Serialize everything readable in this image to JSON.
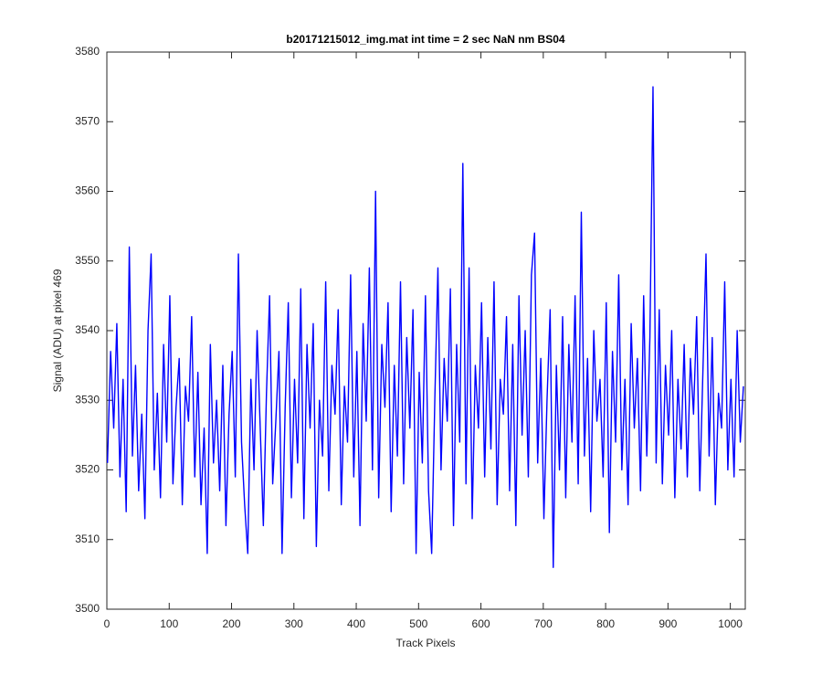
{
  "chart_data": {
    "type": "line",
    "title": "b20171215012_img.mat int time = 2 sec  NaN nm BS04",
    "x_label": "Track Pixels",
    "y_label": "Signal (ADU) at pixel 469",
    "xlim": [
      0,
      1024
    ],
    "xticks": [
      0,
      100,
      200,
      300,
      400,
      500,
      600,
      700,
      800,
      900,
      1000
    ],
    "ylim": [
      3500,
      3580
    ],
    "yticks": [
      3500,
      3510,
      3520,
      3530,
      3540,
      3550,
      3560,
      3570,
      3580
    ],
    "grid": false,
    "x": [
      1,
      6,
      11,
      16,
      21,
      26,
      31,
      36,
      41,
      46,
      51,
      56,
      61,
      66,
      71,
      76,
      81,
      86,
      91,
      96,
      101,
      106,
      111,
      116,
      121,
      126,
      131,
      136,
      141,
      146,
      151,
      156,
      161,
      166,
      171,
      176,
      181,
      186,
      191,
      196,
      201,
      206,
      211,
      216,
      221,
      226,
      231,
      236,
      241,
      246,
      251,
      256,
      261,
      266,
      271,
      276,
      281,
      286,
      291,
      296,
      301,
      306,
      311,
      316,
      321,
      326,
      331,
      336,
      341,
      346,
      351,
      356,
      361,
      366,
      371,
      376,
      381,
      386,
      391,
      396,
      401,
      406,
      411,
      416,
      421,
      426,
      431,
      436,
      441,
      446,
      451,
      456,
      461,
      466,
      471,
      476,
      481,
      486,
      491,
      496,
      501,
      506,
      511,
      516,
      521,
      526,
      531,
      536,
      541,
      546,
      551,
      556,
      561,
      566,
      571,
      576,
      581,
      586,
      591,
      596,
      601,
      606,
      611,
      616,
      621,
      626,
      631,
      636,
      641,
      646,
      651,
      656,
      661,
      666,
      671,
      676,
      681,
      686,
      691,
      696,
      701,
      706,
      711,
      716,
      721,
      726,
      731,
      736,
      741,
      746,
      751,
      756,
      761,
      766,
      771,
      776,
      781,
      786,
      791,
      796,
      801,
      806,
      811,
      816,
      821,
      826,
      831,
      836,
      841,
      846,
      851,
      856,
      861,
      866,
      871,
      876,
      881,
      886,
      891,
      896,
      901,
      906,
      911,
      916,
      921,
      926,
      931,
      936,
      941,
      946,
      951,
      956,
      961,
      966,
      971,
      976,
      981,
      986,
      991,
      996,
      1001,
      1006,
      1011,
      1016,
      1021
    ],
    "series": [
      {
        "name": "signal",
        "color": "#0000ff",
        "values": [
          3521,
          3537,
          3526,
          3541,
          3519,
          3533,
          3514,
          3552,
          3522,
          3535,
          3517,
          3528,
          3513,
          3540,
          3551,
          3520,
          3531,
          3516,
          3538,
          3524,
          3545,
          3518,
          3529,
          3536,
          3515,
          3532,
          3527,
          3542,
          3519,
          3534,
          3515,
          3526,
          3508,
          3538,
          3521,
          3530,
          3517,
          3535,
          3512,
          3528,
          3537,
          3519,
          3551,
          3524,
          3515,
          3508,
          3533,
          3520,
          3540,
          3526,
          3512,
          3531,
          3545,
          3518,
          3527,
          3537,
          3508,
          3529,
          3544,
          3516,
          3533,
          3521,
          3546,
          3513,
          3538,
          3526,
          3541,
          3509,
          3530,
          3522,
          3547,
          3517,
          3535,
          3528,
          3543,
          3515,
          3532,
          3524,
          3548,
          3519,
          3537,
          3512,
          3541,
          3527,
          3549,
          3520,
          3560,
          3516,
          3538,
          3529,
          3544,
          3514,
          3535,
          3522,
          3547,
          3518,
          3539,
          3526,
          3543,
          3508,
          3534,
          3521,
          3545,
          3517,
          3508,
          3530,
          3549,
          3520,
          3536,
          3527,
          3546,
          3512,
          3538,
          3524,
          3564,
          3518,
          3549,
          3513,
          3535,
          3526,
          3544,
          3519,
          3539,
          3523,
          3547,
          3515,
          3533,
          3528,
          3542,
          3517,
          3538,
          3512,
          3545,
          3525,
          3540,
          3519,
          3548,
          3554,
          3521,
          3536,
          3513,
          3530,
          3543,
          3506,
          3535,
          3520,
          3542,
          3516,
          3538,
          3524,
          3545,
          3518,
          3557,
          3522,
          3536,
          3514,
          3540,
          3527,
          3533,
          3519,
          3544,
          3511,
          3537,
          3524,
          3548,
          3520,
          3533,
          3515,
          3541,
          3526,
          3536,
          3517,
          3545,
          3522,
          3539,
          3575,
          3521,
          3543,
          3518,
          3535,
          3525,
          3540,
          3516,
          3533,
          3523,
          3538,
          3519,
          3536,
          3528,
          3542,
          3517,
          3534,
          3551,
          3522,
          3539,
          3515,
          3531,
          3526,
          3547,
          3520,
          3533,
          3519,
          3540,
          3524,
          3532
        ]
      }
    ]
  }
}
